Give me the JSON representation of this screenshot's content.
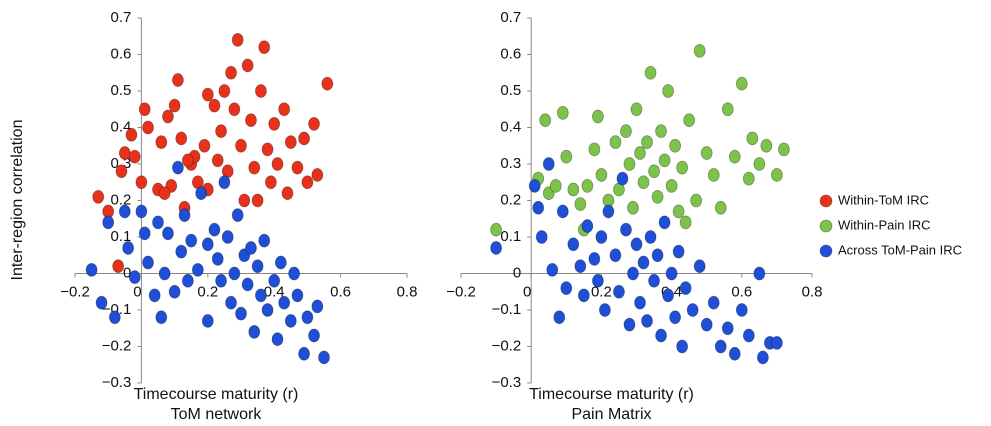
{
  "chart_data": [
    {
      "type": "scatter",
      "ylabel": "Inter-region correlation",
      "xlabel": "Timecourse maturity (r)",
      "xlabel2": "ToM network",
      "xlim": [
        -0.2,
        0.8
      ],
      "ylim": [
        -0.3,
        0.7
      ],
      "xticks": [
        {
          "value": -0.2,
          "label": "−0.2"
        },
        0,
        0.2,
        0.4,
        0.6,
        0.8
      ],
      "yticks": [
        {
          "value": -0.3,
          "label": "−0.3"
        },
        {
          "value": -0.2,
          "label": "−0.2"
        },
        {
          "value": -0.1,
          "label": "−0.1"
        },
        0,
        0.1,
        0.2,
        0.3,
        0.4,
        0.5,
        0.6,
        0.7
      ],
      "series": [
        {
          "name": "Within-ToM IRC",
          "color": "#e8311a",
          "x": [
            -0.13,
            -0.1,
            -0.06,
            -0.05,
            -0.03,
            -0.02,
            0,
            0.01,
            0.02,
            0.05,
            0.06,
            0.08,
            0.09,
            0.1,
            0.11,
            0.12,
            0.13,
            0.15,
            0.16,
            0.17,
            0.19,
            0.2,
            0.2,
            0.22,
            0.23,
            0.24,
            0.25,
            0.26,
            0.27,
            0.28,
            0.29,
            0.3,
            0.31,
            0.32,
            0.33,
            0.34,
            0.36,
            0.37,
            0.38,
            0.39,
            0.4,
            0.41,
            0.43,
            0.44,
            0.45,
            0.47,
            0.49,
            0.5,
            0.52,
            0.53,
            0.56,
            -0.07,
            0.07,
            0.14,
            0.35
          ],
          "values": [
            0.21,
            0.17,
            0.28,
            0.33,
            0.38,
            0.32,
            0.25,
            0.45,
            0.4,
            0.23,
            0.36,
            0.43,
            0.24,
            0.46,
            0.53,
            0.37,
            0.18,
            0.3,
            0.32,
            0.25,
            0.35,
            0.49,
            0.23,
            0.46,
            0.31,
            0.39,
            0.5,
            0.28,
            0.55,
            0.45,
            0.64,
            0.35,
            0.2,
            0.57,
            0.42,
            0.29,
            0.5,
            0.62,
            0.34,
            0.25,
            0.41,
            0.3,
            0.45,
            0.22,
            0.36,
            0.29,
            0.37,
            0.25,
            0.41,
            0.27,
            0.52,
            0.02,
            0.22,
            0.31,
            0.2
          ]
        },
        {
          "name": "Across ToM-Pain IRC",
          "color": "#1f4fd6",
          "x": [
            -0.15,
            -0.12,
            -0.1,
            -0.08,
            -0.05,
            -0.04,
            -0.02,
            0,
            0.01,
            0.02,
            0.04,
            0.05,
            0.06,
            0.07,
            0.08,
            0.1,
            0.11,
            0.12,
            0.13,
            0.14,
            0.15,
            0.17,
            0.18,
            0.2,
            0.2,
            0.22,
            0.23,
            0.24,
            0.25,
            0.26,
            0.27,
            0.28,
            0.29,
            0.3,
            0.31,
            0.32,
            0.33,
            0.34,
            0.35,
            0.36,
            0.37,
            0.38,
            0.4,
            0.41,
            0.42,
            0.43,
            0.45,
            0.46,
            0.47,
            0.49,
            0.5,
            0.52,
            0.53,
            0.55
          ],
          "values": [
            0.01,
            -0.08,
            0.14,
            -0.12,
            0.17,
            0.07,
            -0.01,
            0.17,
            0.11,
            0.03,
            -0.06,
            0.14,
            -0.12,
            0,
            0.11,
            -0.05,
            0.29,
            0.06,
            0.16,
            -0.02,
            0.09,
            0.01,
            0.22,
            -0.13,
            0.08,
            0.12,
            0.04,
            -0.02,
            0.25,
            0.1,
            -0.08,
            0,
            0.16,
            -0.11,
            0.05,
            -0.03,
            0.07,
            -0.16,
            0.02,
            -0.06,
            0.09,
            -0.1,
            -0.02,
            -0.18,
            0.03,
            -0.08,
            -0.13,
            0,
            -0.06,
            -0.22,
            -0.12,
            -0.17,
            -0.09,
            -0.23
          ]
        }
      ]
    },
    {
      "type": "scatter",
      "xlabel": "Timecourse maturity (r)",
      "xlabel2": "Pain Matrix",
      "xlim": [
        -0.2,
        0.8
      ],
      "ylim": [
        -0.3,
        0.7
      ],
      "xticks": [
        {
          "value": -0.2,
          "label": "−0.2"
        },
        0,
        0.2,
        0.4,
        0.6,
        0.8
      ],
      "yticks": [
        {
          "value": -0.3,
          "label": "−0.3"
        },
        {
          "value": -0.2,
          "label": "−0.2"
        },
        {
          "value": -0.1,
          "label": "−0.1"
        },
        0,
        0.1,
        0.2,
        0.3,
        0.4,
        0.5,
        0.6,
        0.7
      ],
      "series": [
        {
          "name": "Within-Pain IRC",
          "color": "#7dc34a",
          "x": [
            -0.1,
            0.02,
            0.04,
            0.05,
            0.07,
            0.09,
            0.1,
            0.12,
            0.14,
            0.16,
            0.18,
            0.19,
            0.2,
            0.22,
            0.24,
            0.25,
            0.27,
            0.28,
            0.29,
            0.3,
            0.31,
            0.32,
            0.33,
            0.34,
            0.35,
            0.36,
            0.37,
            0.38,
            0.39,
            0.4,
            0.41,
            0.42,
            0.43,
            0.45,
            0.47,
            0.48,
            0.5,
            0.52,
            0.54,
            0.56,
            0.58,
            0.6,
            0.62,
            0.63,
            0.65,
            0.67,
            0.7,
            0.72,
            0.15,
            0.44
          ],
          "values": [
            0.12,
            0.26,
            0.42,
            0.22,
            0.24,
            0.44,
            0.32,
            0.23,
            0.19,
            0.24,
            0.34,
            0.43,
            0.27,
            0.2,
            0.36,
            0.23,
            0.39,
            0.3,
            0.18,
            0.45,
            0.33,
            0.25,
            0.36,
            0.55,
            0.28,
            0.21,
            0.39,
            0.31,
            0.5,
            0.24,
            0.35,
            0.17,
            0.29,
            0.42,
            0.2,
            0.61,
            0.33,
            0.27,
            0.18,
            0.45,
            0.32,
            0.52,
            0.26,
            0.37,
            0.3,
            0.35,
            0.27,
            0.34,
            0.12,
            0.14
          ]
        },
        {
          "color": "#1f4fd6",
          "x": [
            -0.1,
            0.01,
            0.02,
            0.03,
            0.05,
            0.06,
            0.08,
            0.09,
            0.1,
            0.12,
            0.14,
            0.15,
            0.16,
            0.18,
            0.19,
            0.2,
            0.21,
            0.22,
            0.24,
            0.25,
            0.26,
            0.27,
            0.28,
            0.29,
            0.3,
            0.31,
            0.32,
            0.33,
            0.34,
            0.35,
            0.36,
            0.37,
            0.38,
            0.39,
            0.4,
            0.41,
            0.42,
            0.43,
            0.44,
            0.46,
            0.48,
            0.5,
            0.52,
            0.54,
            0.56,
            0.58,
            0.6,
            0.62,
            0.65,
            0.66,
            0.68,
            0.7
          ],
          "values": [
            0.07,
            0.24,
            0.18,
            0.1,
            0.3,
            0.01,
            -0.12,
            0.17,
            -0.04,
            0.08,
            0.02,
            -0.06,
            0.13,
            0.04,
            -0.02,
            0.1,
            -0.1,
            0.17,
            0.05,
            -0.05,
            0.26,
            0.12,
            -0.14,
            0,
            0.08,
            -0.08,
            0.03,
            -0.13,
            0.1,
            -0.02,
            0.05,
            -0.17,
            0.14,
            -0.06,
            0,
            -0.12,
            0.06,
            -0.2,
            -0.04,
            -0.1,
            0.02,
            -0.14,
            -0.08,
            -0.2,
            -0.15,
            -0.22,
            -0.1,
            -0.17,
            0,
            -0.23,
            -0.19,
            -0.19
          ]
        }
      ]
    }
  ]
}
